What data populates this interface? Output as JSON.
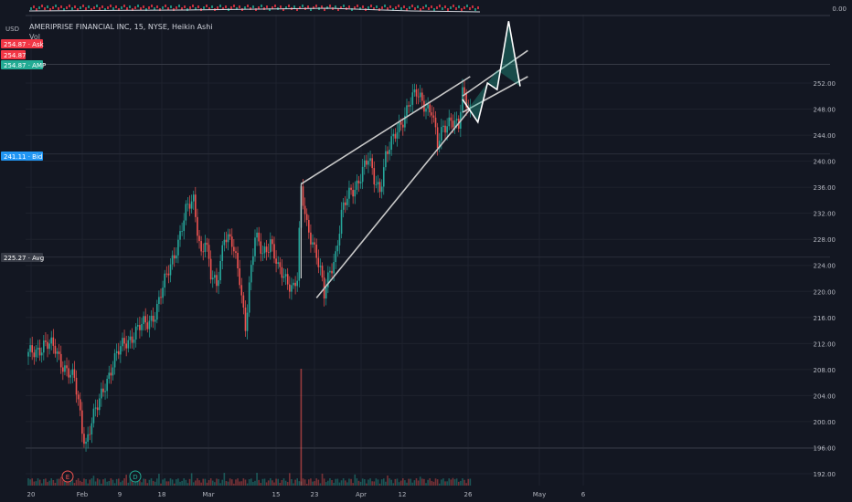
{
  "currency": "USD",
  "title": "AMERIPRISE FINANCIAL INC, 15, NYSE, Heikin Ashi",
  "volume_label": "Vol",
  "top_indicator_value": "0.00",
  "price_tags": [
    {
      "value": "254.87",
      "label": "Ask",
      "color": "#f23645"
    },
    {
      "value": "254.87",
      "label": "",
      "color": "#f23645"
    },
    {
      "value": "254.87",
      "label": "AMP",
      "color": "#22ab94"
    },
    {
      "value": "241.11",
      "label": "Bid",
      "color": "#2196f3"
    },
    {
      "value": "225.27",
      "label": "Avg",
      "color": "#363a45"
    }
  ],
  "event_markers": [
    "E",
    "D"
  ],
  "chart_data": {
    "type": "candlestick",
    "y_ticks": [
      "192.00",
      "196.00",
      "200.00",
      "204.00",
      "208.00",
      "212.00",
      "216.00",
      "220.00",
      "224.00",
      "228.00",
      "232.00",
      "236.00",
      "240.00",
      "244.00",
      "248.00",
      "252.00"
    ],
    "x_ticks": [
      "20",
      "Feb",
      "9",
      "18",
      "Mar",
      "15",
      "23",
      "Apr",
      "12",
      "26",
      "May",
      "6"
    ],
    "ylim": [
      190,
      262
    ],
    "path": [
      [
        0,
        210
      ],
      [
        4,
        211
      ],
      [
        8,
        212
      ],
      [
        14,
        211
      ],
      [
        20,
        208
      ],
      [
        24,
        206
      ],
      [
        26,
        203
      ],
      [
        28,
        199
      ],
      [
        30,
        197
      ],
      [
        33,
        200
      ],
      [
        36,
        202
      ],
      [
        40,
        206
      ],
      [
        44,
        209
      ],
      [
        50,
        212
      ],
      [
        56,
        214
      ],
      [
        62,
        215
      ],
      [
        66,
        217
      ],
      [
        72,
        222
      ],
      [
        78,
        228
      ],
      [
        82,
        232
      ],
      [
        86,
        234
      ],
      [
        88,
        230
      ],
      [
        90,
        226
      ],
      [
        92,
        228
      ],
      [
        95,
        222
      ],
      [
        98,
        221
      ],
      [
        102,
        229
      ],
      [
        106,
        227
      ],
      [
        110,
        222
      ],
      [
        113,
        215
      ],
      [
        115,
        221
      ],
      [
        118,
        228
      ],
      [
        122,
        226
      ],
      [
        126,
        228
      ],
      [
        130,
        223
      ],
      [
        134,
        222
      ],
      [
        138,
        221
      ],
      [
        140,
        222
      ],
      [
        142,
        235
      ],
      [
        145,
        230
      ],
      [
        148,
        228
      ],
      [
        150,
        226
      ],
      [
        152,
        223
      ],
      [
        154,
        219
      ],
      [
        157,
        223
      ],
      [
        160,
        226
      ],
      [
        163,
        232
      ],
      [
        166,
        234
      ],
      [
        170,
        236
      ],
      [
        174,
        239
      ],
      [
        177,
        240
      ],
      [
        180,
        237
      ],
      [
        183,
        236
      ],
      [
        186,
        241
      ],
      [
        190,
        243
      ],
      [
        194,
        246
      ],
      [
        198,
        249
      ],
      [
        202,
        250
      ],
      [
        206,
        249
      ],
      [
        210,
        248
      ],
      [
        213,
        242
      ],
      [
        216,
        245
      ],
      [
        220,
        247
      ],
      [
        224,
        245
      ],
      [
        226,
        250
      ],
      [
        230,
        248
      ]
    ],
    "volume": {
      "spike_index": 142,
      "spike_value": "large"
    },
    "channel_upper": [
      [
        142,
        236.5
      ],
      [
        230,
        253
      ]
    ],
    "channel_lower": [
      [
        150,
        219
      ],
      [
        230,
        248
      ]
    ],
    "projection_upper_line": [
      [
        226,
        250
      ],
      [
        260,
        257
      ]
    ],
    "projection_lower_line": [
      [
        226,
        247.5
      ],
      [
        260,
        253
      ]
    ],
    "projection_zigzag": [
      [
        226,
        249.5
      ],
      [
        234,
        246
      ],
      [
        239,
        252
      ],
      [
        244,
        251
      ],
      [
        250,
        261.5
      ],
      [
        256,
        251.5
      ]
    ]
  }
}
